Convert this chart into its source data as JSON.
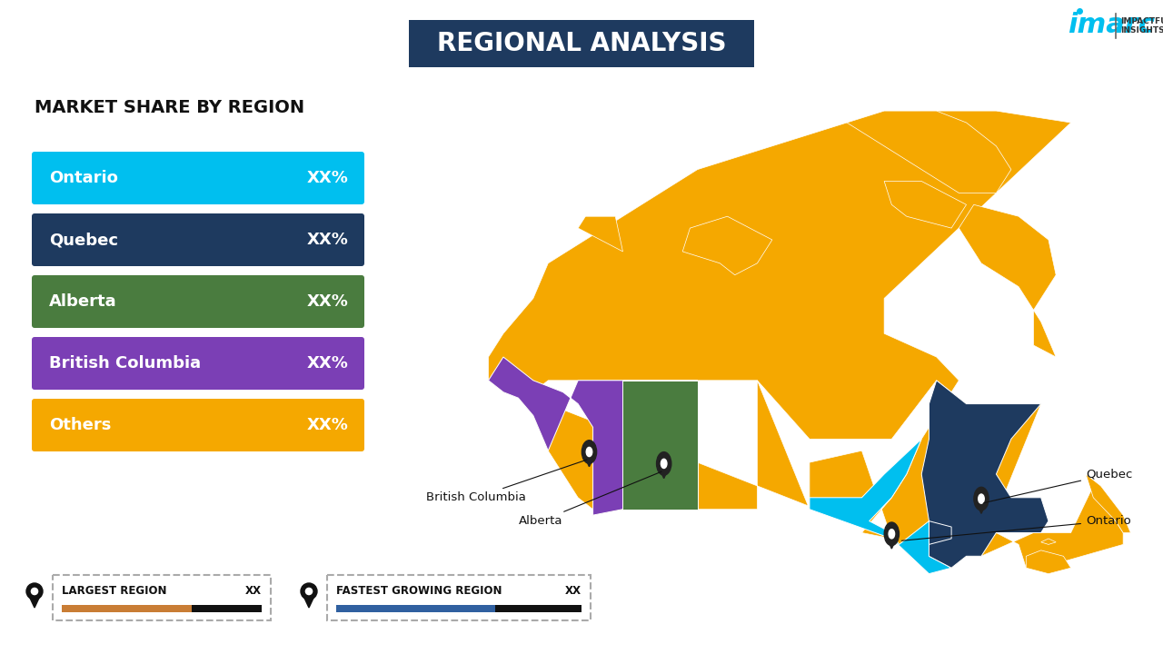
{
  "title": "REGIONAL ANALYSIS",
  "subtitle": "MARKET SHARE BY REGION",
  "background_color": "#FFFFFF",
  "title_bg_color": "#1e3a5f",
  "title_text_color": "#FFFFFF",
  "regions": [
    {
      "name": "Ontario",
      "value": "XX%",
      "color": "#00BFEF"
    },
    {
      "name": "Quebec",
      "value": "XX%",
      "color": "#1e3a5f"
    },
    {
      "name": "Alberta",
      "value": "XX%",
      "color": "#4a7c3f"
    },
    {
      "name": "British Columbia",
      "value": "XX%",
      "color": "#7b3fb5"
    },
    {
      "name": "Others",
      "value": "XX%",
      "color": "#F5A800"
    }
  ],
  "legend_items": [
    {
      "label": "LARGEST REGION",
      "value": "XX",
      "bar_color": "#C97D35",
      "dark_color": "#111111"
    },
    {
      "label": "FASTEST GROWING REGION",
      "value": "XX",
      "bar_color": "#3060A0",
      "dark_color": "#111111"
    }
  ],
  "map_colors": {
    "default": "#F5A800",
    "ontario": "#00BFEF",
    "quebec": "#1e3a5f",
    "alberta": "#4a7c3f",
    "british_columbia": "#7b3fb5"
  },
  "imarc_color": "#00BFEF",
  "pin_color": "#111111"
}
